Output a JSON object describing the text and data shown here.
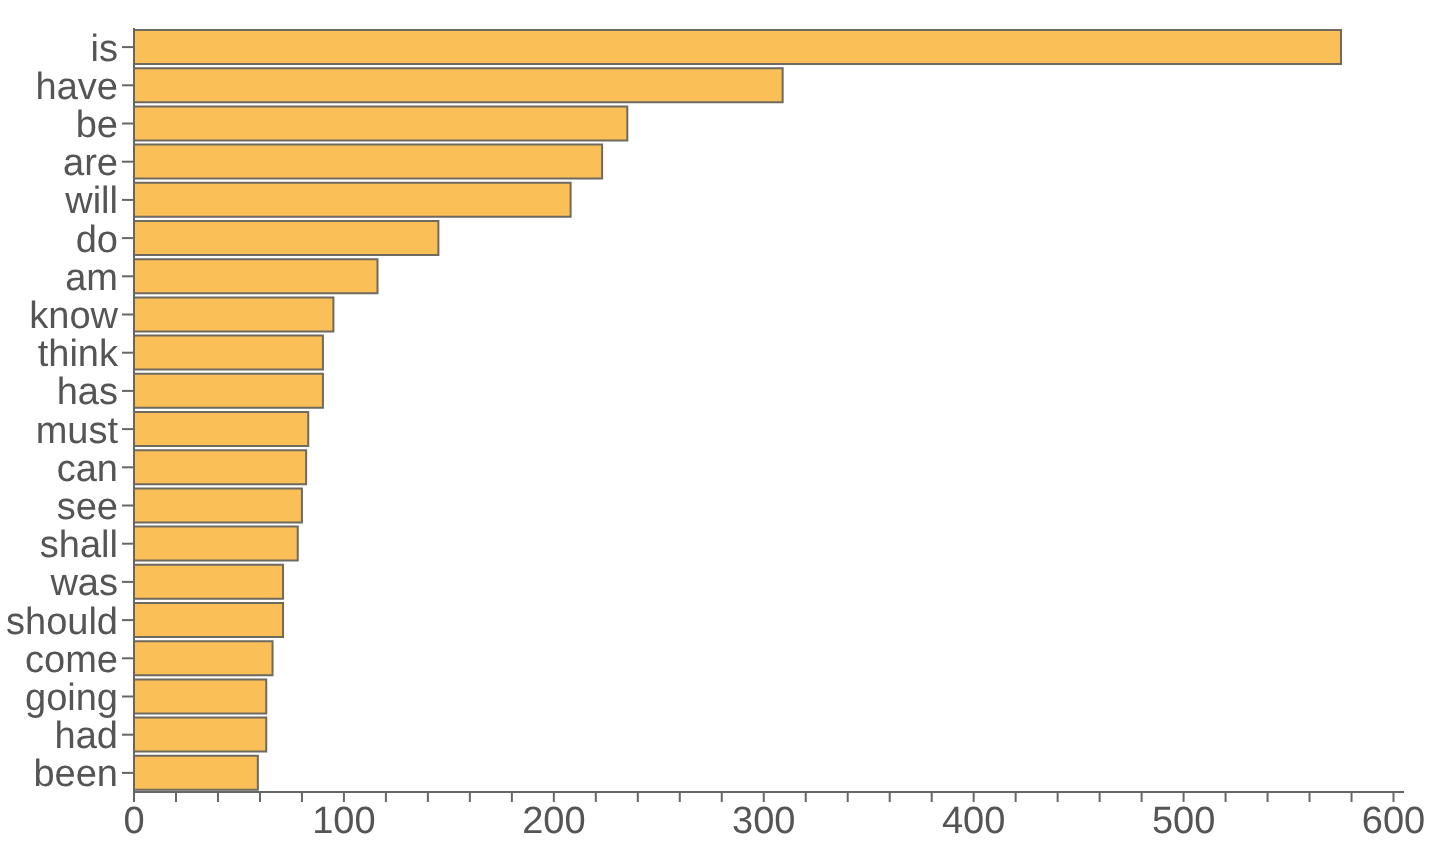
{
  "chart_data": {
    "type": "bar",
    "orientation": "horizontal",
    "categories": [
      "is",
      "have",
      "be",
      "are",
      "will",
      "do",
      "am",
      "know",
      "think",
      "has",
      "must",
      "can",
      "see",
      "shall",
      "was",
      "should",
      "come",
      "going",
      "had",
      "been"
    ],
    "values": [
      575,
      309,
      235,
      223,
      208,
      145,
      116,
      95,
      90,
      90,
      83,
      82,
      80,
      78,
      71,
      71,
      66,
      63,
      63,
      59
    ],
    "color": "#fbbf57",
    "xlim": [
      0,
      605
    ],
    "xticks": [
      0,
      {
        "value": 20,
        "label": null
      },
      {
        "value": 40,
        "label": null
      },
      {
        "value": 60,
        "label": null
      },
      {
        "value": 80,
        "label": null
      },
      100,
      {
        "value": 120,
        "label": null
      },
      {
        "value": 140,
        "label": null
      },
      {
        "value": 160,
        "label": null
      },
      {
        "value": 180,
        "label": null
      },
      200,
      {
        "value": 220,
        "label": null
      },
      {
        "value": 240,
        "label": null
      },
      {
        "value": 260,
        "label": null
      },
      {
        "value": 280,
        "label": null
      },
      300,
      {
        "value": 320,
        "label": null
      },
      {
        "value": 340,
        "label": null
      },
      {
        "value": 360,
        "label": null
      },
      {
        "value": 380,
        "label": null
      },
      400,
      {
        "value": 420,
        "label": null
      },
      {
        "value": 440,
        "label": null
      },
      {
        "value": 460,
        "label": null
      },
      {
        "value": 480,
        "label": null
      },
      500,
      {
        "value": 520,
        "label": null
      },
      {
        "value": 540,
        "label": null
      },
      {
        "value": 560,
        "label": null
      },
      {
        "value": 580,
        "label": null
      },
      600
    ],
    "grid": false
  }
}
